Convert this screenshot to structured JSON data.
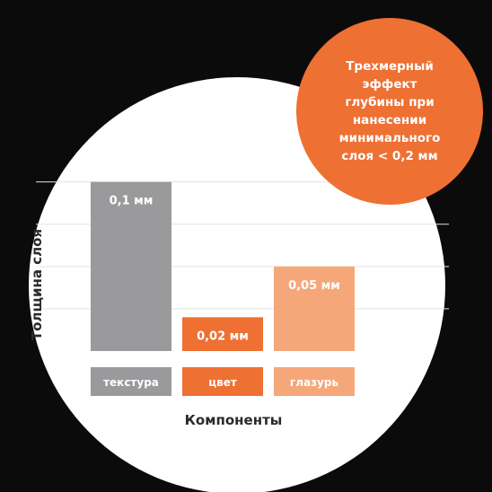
{
  "callout": {
    "text": "Трехмерный\nэффект\nглубины при\nнанесении\nминимального\nслоя < 0,2 мм"
  },
  "colors": {
    "background": "#0b0b0b",
    "circle": "#ffffff",
    "accent": "#ee7033",
    "texture": "#9a9a9c",
    "color": "#ee7033",
    "glaze": "#f5a77a"
  },
  "chart_data": {
    "type": "bar",
    "categories": [
      "текстура",
      "цвет",
      "глазурь"
    ],
    "values": [
      0.1,
      0.02,
      0.05
    ],
    "value_labels": [
      "0,1 мм",
      "0,02 мм",
      "0,05 мм"
    ],
    "bar_colors": [
      "#9a9a9c",
      "#ee7033",
      "#f5a77a"
    ],
    "xlabel": "Компоненты",
    "ylabel": "Толщина слоя",
    "ylim": [
      0,
      0.12
    ],
    "grid": true
  }
}
